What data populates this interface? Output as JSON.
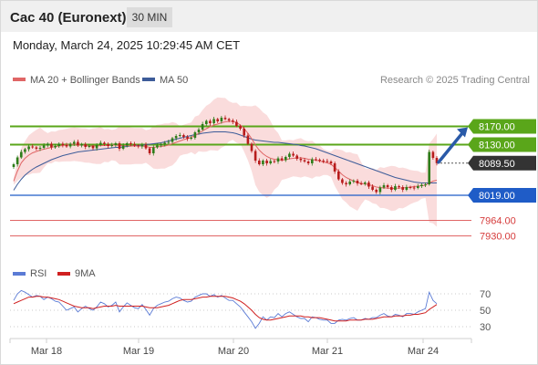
{
  "header": {
    "title": "Cac 40 (Euronext)",
    "timeframe": "30 MIN",
    "datetime": "Monday, March 24, 2025 10:29:45 AM CET"
  },
  "legend": {
    "ma20": "MA 20 + Bollinger Bands",
    "ma50": "MA 50",
    "credit": "Research © 2025 Trading Central",
    "rsi": "RSI",
    "rsi_ma": "9MA"
  },
  "colors": {
    "candle_up": "#2e7d1a",
    "candle_down": "#b71c1c",
    "ma20": "#e06666",
    "bollinger_fill": "#f9d3d3",
    "ma50": "#3d5c99",
    "resistance": "#5aa61a",
    "support": "#1f5cc7",
    "target_red": "#e06666",
    "arrow": "#2a5aa8",
    "current_price_bg": "#333333",
    "rsi": "#5b7bd5",
    "rsi_ma": "#d02020"
  },
  "chart_data": [
    {
      "type": "candlestick",
      "title": "",
      "x_tick_labels": [
        "Mar 18",
        "Mar 19",
        "Mar 20",
        "Mar 21",
        "Mar 24"
      ],
      "series_names": [
        "MA 20 + Bollinger Bands",
        "MA 50"
      ],
      "ylim": [
        7900,
        8300
      ],
      "price_levels": [
        {
          "value": 8170.0,
          "label": "8170.00",
          "kind": "resistance"
        },
        {
          "value": 8130.0,
          "label": "8130.00",
          "kind": "resistance"
        },
        {
          "value": 8089.5,
          "label": "8089.50",
          "kind": "current"
        },
        {
          "value": 8019.0,
          "label": "8019.00",
          "kind": "support"
        },
        {
          "value": 7964.0,
          "label": "7964.00",
          "kind": "target"
        },
        {
          "value": 7930.0,
          "label": "7930.00",
          "kind": "target"
        }
      ],
      "close_path": [
        8087,
        8102,
        8114,
        8120,
        8126,
        8124,
        8121,
        8123,
        8128,
        8132,
        8124,
        8127,
        8132,
        8129,
        8126,
        8132,
        8136,
        8128,
        8131,
        8125,
        8127,
        8122,
        8129,
        8134,
        8131,
        8127,
        8129,
        8133,
        8121,
        8128,
        8133,
        8131,
        8128,
        8126,
        8130,
        8122,
        8111,
        8124,
        8128,
        8131,
        8134,
        8136,
        8144,
        8149,
        8151,
        8147,
        8143,
        8145,
        8157,
        8163,
        8175,
        8182,
        8177,
        8186,
        8181,
        8189,
        8186,
        8183,
        8180,
        8171,
        8165,
        8150,
        8132,
        8116,
        8095,
        8087,
        8095,
        8089,
        8094,
        8093,
        8100,
        8096,
        8103,
        8110,
        8106,
        8099,
        8096,
        8093,
        8089,
        8098,
        8097,
        8095,
        8094,
        8093,
        8089,
        8071,
        8054,
        8046,
        8043,
        8049,
        8051,
        8045,
        8044,
        8047,
        8038,
        8031,
        8026,
        8036,
        8041,
        8037,
        8031,
        8039,
        8037,
        8031,
        8037,
        8036,
        8035,
        8039,
        8042,
        8043,
        8114,
        8101,
        8089.5
      ],
      "ma20_path": [
        8050,
        8072,
        8090,
        8100,
        8107,
        8112,
        8115,
        8118,
        8120,
        8122,
        8124,
        8126,
        8127,
        8128,
        8129,
        8130,
        8131,
        8130,
        8129,
        8128,
        8127,
        8127,
        8127,
        8128,
        8128,
        8128,
        8129,
        8129,
        8128,
        8128,
        8128,
        8127,
        8127,
        8127,
        8127,
        8126,
        8124,
        8124,
        8125,
        8126,
        8127,
        8129,
        8132,
        8135,
        8138,
        8141,
        8143,
        8146,
        8150,
        8155,
        8160,
        8165,
        8169,
        8173,
        8175,
        8178,
        8180,
        8181,
        8181,
        8178,
        8173,
        8165,
        8155,
        8143,
        8129,
        8118,
        8110,
        8104,
        8100,
        8098,
        8097,
        8096,
        8097,
        8099,
        8100,
        8101,
        8101,
        8100,
        8098,
        8097,
        8096,
        8094,
        8092,
        8090,
        8087,
        8080,
        8072,
        8064,
        8058,
        8054,
        8050,
        8047,
        8045,
        8044,
        8042,
        8040,
        8037,
        8036,
        8035,
        8035,
        8034,
        8034,
        8035,
        8035,
        8036,
        8037,
        8038,
        8039,
        8040,
        8041,
        8046,
        8050,
        8052
      ],
      "ma50_path": [
        8030,
        8043,
        8054,
        8063,
        8070,
        8076,
        8081,
        8085,
        8089,
        8093,
        8097,
        8100,
        8103,
        8106,
        8108,
        8110,
        8112,
        8114,
        8115,
        8116,
        8117,
        8118,
        8119,
        8120,
        8121,
        8122,
        8123,
        8124,
        8124,
        8125,
        8126,
        8127,
        8128,
        8128,
        8129,
        8130,
        8131,
        8132,
        8133,
        8134,
        8136,
        8138,
        8140,
        8142,
        8144,
        8146,
        8148,
        8150,
        8152,
        8153,
        8155,
        8156,
        8157,
        8158,
        8158,
        8158,
        8158,
        8157,
        8156,
        8154,
        8151,
        8148,
        8145,
        8142,
        8140,
        8139,
        8138,
        8137,
        8136,
        8135,
        8135,
        8134,
        8133,
        8132,
        8131,
        8130,
        8128,
        8127,
        8125,
        8123,
        8121,
        8118,
        8115,
        8112,
        8109,
        8106,
        8103,
        8100,
        8097,
        8094,
        8091,
        8088,
        8085,
        8082,
        8079,
        8076,
        8073,
        8070,
        8067,
        8064,
        8061,
        8058,
        8056,
        8054,
        8052,
        8050,
        8048,
        8047,
        8046,
        8046,
        8046,
        8046,
        8046
      ]
    },
    {
      "type": "line",
      "title": "",
      "series_names": [
        "RSI",
        "9MA"
      ],
      "ylim": [
        20,
        80
      ],
      "y_tick_labels": [
        "70",
        "50",
        "30"
      ],
      "y_ticks": [
        70,
        50,
        30
      ],
      "rsi": [
        62,
        70,
        74,
        72,
        69,
        66,
        68,
        67,
        63,
        66,
        64,
        61,
        60,
        55,
        50,
        52,
        54,
        48,
        52,
        55,
        52,
        50,
        54,
        60,
        58,
        54,
        56,
        60,
        48,
        54,
        59,
        56,
        53,
        52,
        57,
        51,
        44,
        52,
        56,
        58,
        60,
        61,
        64,
        66,
        65,
        62,
        60,
        61,
        66,
        68,
        70,
        70,
        67,
        69,
        66,
        68,
        65,
        62,
        62,
        58,
        54,
        48,
        42,
        36,
        28,
        34,
        42,
        38,
        42,
        41,
        46,
        42,
        46,
        48,
        45,
        42,
        40,
        40,
        36,
        42,
        41,
        39,
        38,
        38,
        34,
        34,
        38,
        39,
        38,
        40,
        41,
        38,
        38,
        40,
        39,
        41,
        41,
        44,
        46,
        43,
        42,
        45,
        44,
        42,
        46,
        46,
        45,
        48,
        50,
        52,
        72,
        62,
        58
      ],
      "rsi_ma": [
        58,
        60,
        62,
        64,
        66,
        66,
        67,
        67,
        66,
        66,
        65,
        64,
        63,
        61,
        59,
        57,
        55,
        54,
        53,
        53,
        53,
        52,
        53,
        54,
        55,
        55,
        55,
        56,
        55,
        55,
        55,
        55,
        55,
        55,
        55,
        54,
        53,
        53,
        53,
        54,
        55,
        56,
        58,
        60,
        62,
        63,
        63,
        63,
        64,
        65,
        66,
        66,
        67,
        67,
        67,
        67,
        67,
        66,
        65,
        63,
        61,
        58,
        54,
        50,
        45,
        41,
        39,
        38,
        38,
        39,
        40,
        41,
        42,
        43,
        43,
        43,
        43,
        42,
        42,
        41,
        41,
        41,
        40,
        39,
        38,
        37,
        37,
        37,
        37,
        38,
        38,
        38,
        38,
        39,
        39,
        39,
        40,
        41,
        42,
        42,
        42,
        43,
        43,
        43,
        44,
        44,
        45,
        45,
        46,
        47,
        51,
        54,
        57
      ]
    }
  ]
}
